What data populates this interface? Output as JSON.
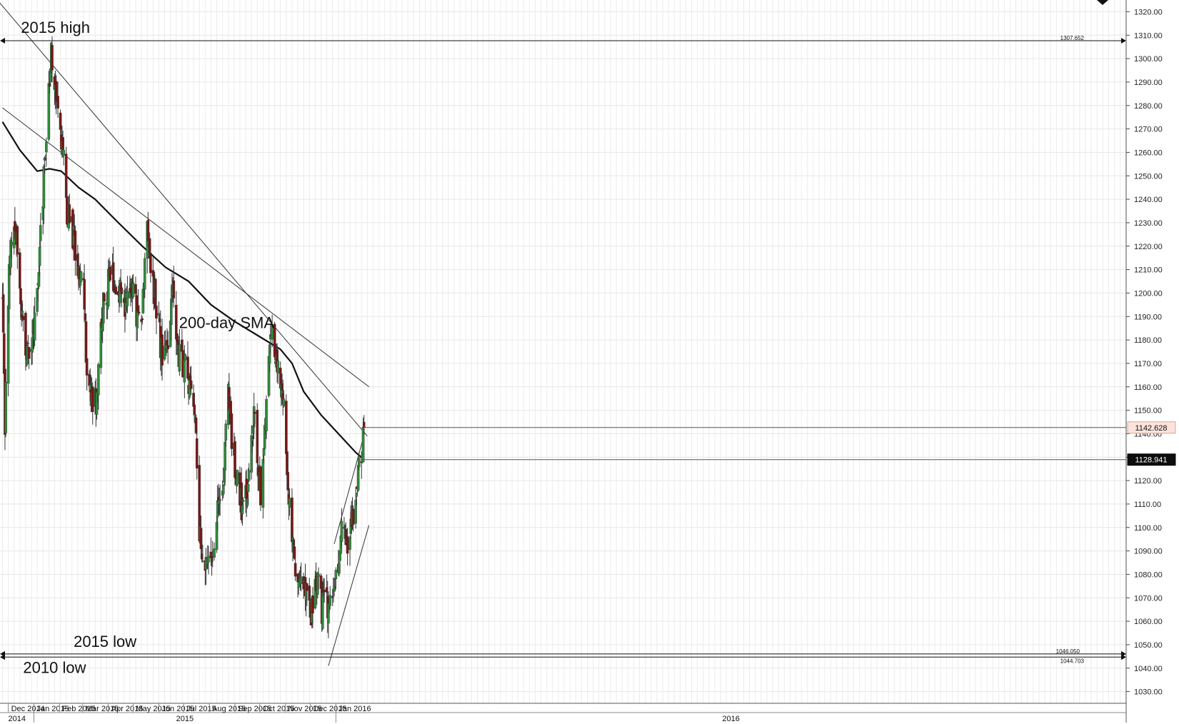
{
  "chart_data": {
    "type": "candlestick",
    "title": "",
    "xlabel": "",
    "ylabel": "",
    "ylim": [
      1025,
      1325
    ],
    "yticks": [
      1030,
      1040,
      1050,
      1060,
      1070,
      1080,
      1090,
      1100,
      1110,
      1120,
      1130,
      1140,
      1150,
      1160,
      1170,
      1180,
      1190,
      1200,
      1210,
      1220,
      1230,
      1240,
      1250,
      1260,
      1270,
      1280,
      1290,
      1300,
      1310,
      1320
    ],
    "ytick_suffix": ".00",
    "grid": true,
    "months": [
      "Dec 2014",
      "Jan 2015",
      "Feb 2015",
      "Mar 2015",
      "Apr 2015",
      "May 2015",
      "Jun 2015",
      "Jul 2015",
      "Aug 2015",
      "Sep 2015",
      "Oct 2015",
      "Nov 2015",
      "Dec 2015",
      "Jan 2016"
    ],
    "years": [
      "2014",
      "2015",
      "2016"
    ],
    "waypoints": [
      [
        "2014-11-24",
        1195
      ],
      [
        "2014-11-27",
        1145
      ],
      [
        "2014-12-03",
        1218
      ],
      [
        "2014-12-09",
        1232
      ],
      [
        "2014-12-16",
        1192
      ],
      [
        "2014-12-24",
        1175
      ],
      [
        "2015-01-02",
        1185
      ],
      [
        "2015-01-08",
        1218
      ],
      [
        "2015-01-15",
        1262
      ],
      [
        "2015-01-22",
        1300
      ],
      [
        "2015-01-28",
        1284
      ],
      [
        "2015-02-03",
        1268
      ],
      [
        "2015-02-10",
        1236
      ],
      [
        "2015-02-17",
        1225
      ],
      [
        "2015-02-24",
        1210
      ],
      [
        "2015-03-02",
        1205
      ],
      [
        "2015-03-06",
        1168
      ],
      [
        "2015-03-11",
        1155
      ],
      [
        "2015-03-17",
        1152
      ],
      [
        "2015-03-24",
        1192
      ],
      [
        "2015-04-02",
        1205
      ],
      [
        "2015-04-08",
        1208
      ],
      [
        "2015-04-14",
        1200
      ],
      [
        "2015-04-22",
        1195
      ],
      [
        "2015-04-29",
        1208
      ],
      [
        "2015-05-06",
        1190
      ],
      [
        "2015-05-12",
        1192
      ],
      [
        "2015-05-18",
        1225
      ],
      [
        "2015-05-22",
        1210
      ],
      [
        "2015-05-29",
        1195
      ],
      [
        "2015-06-05",
        1172
      ],
      [
        "2015-06-12",
        1180
      ],
      [
        "2015-06-18",
        1200
      ],
      [
        "2015-06-26",
        1172
      ],
      [
        "2015-07-02",
        1168
      ],
      [
        "2015-07-09",
        1160
      ],
      [
        "2015-07-15",
        1150
      ],
      [
        "2015-07-20",
        1100
      ],
      [
        "2015-07-24",
        1088
      ],
      [
        "2015-08-04",
        1090
      ],
      [
        "2015-08-10",
        1105
      ],
      [
        "2015-08-17",
        1118
      ],
      [
        "2015-08-24",
        1160
      ],
      [
        "2015-08-28",
        1135
      ],
      [
        "2015-09-04",
        1122
      ],
      [
        "2015-09-11",
        1105
      ],
      [
        "2015-09-17",
        1120
      ],
      [
        "2015-09-24",
        1150
      ],
      [
        "2015-10-02",
        1112
      ],
      [
        "2015-10-09",
        1155
      ],
      [
        "2015-10-15",
        1185
      ],
      [
        "2015-10-23",
        1165
      ],
      [
        "2015-10-29",
        1160
      ],
      [
        "2015-11-04",
        1115
      ],
      [
        "2015-11-10",
        1090
      ],
      [
        "2015-11-18",
        1075
      ],
      [
        "2015-11-26",
        1075
      ],
      [
        "2015-12-02",
        1060
      ],
      [
        "2015-12-08",
        1080
      ],
      [
        "2015-12-15",
        1065
      ],
      [
        "2015-12-21",
        1068
      ],
      [
        "2015-12-29",
        1068
      ],
      [
        "2016-01-05",
        1090
      ],
      [
        "2016-01-08",
        1102
      ],
      [
        "2016-01-14",
        1090
      ],
      [
        "2016-01-20",
        1100
      ],
      [
        "2016-01-26",
        1118
      ],
      [
        "2016-02-01",
        1128
      ],
      [
        "2016-02-04",
        1142
      ]
    ],
    "sma_label": "200-day SMA",
    "sma": [
      [
        "2014-11-24",
        1273
      ],
      [
        "2014-12-15",
        1261
      ],
      [
        "2015-01-05",
        1252
      ],
      [
        "2015-01-20",
        1253
      ],
      [
        "2015-02-03",
        1252
      ],
      [
        "2015-02-24",
        1245
      ],
      [
        "2015-03-16",
        1240
      ],
      [
        "2015-04-13",
        1230
      ],
      [
        "2015-05-12",
        1220
      ],
      [
        "2015-06-09",
        1211
      ],
      [
        "2015-07-07",
        1205
      ],
      [
        "2015-08-03",
        1195
      ],
      [
        "2015-08-31",
        1188
      ],
      [
        "2015-09-28",
        1182
      ],
      [
        "2015-10-26",
        1176
      ],
      [
        "2015-11-09",
        1170
      ],
      [
        "2015-11-23",
        1158
      ],
      [
        "2015-12-14",
        1148
      ],
      [
        "2016-01-04",
        1140
      ],
      [
        "2016-01-25",
        1132
      ],
      [
        "2016-02-04",
        1129
      ]
    ],
    "trendlines": [
      [
        [
          "2014-11-13",
          1327
        ],
        [
          "2016-02-08",
          1139
        ]
      ],
      [
        [
          "2014-11-24",
          1279
        ],
        [
          "2016-02-10",
          1160
        ]
      ],
      [
        [
          "2015-12-30",
          1093
        ],
        [
          "2016-02-03",
          1138
        ]
      ],
      [
        [
          "2015-12-23",
          1041
        ],
        [
          "2016-02-10",
          1101
        ]
      ]
    ],
    "levels": [
      {
        "name": "2015 high",
        "value": 1307.652,
        "label": "1307.652"
      },
      {
        "name": "2015 low",
        "value": 1046.05,
        "label": "1046.050"
      },
      {
        "name": "2010 low",
        "value": 1044.703,
        "label": "1044.703"
      }
    ],
    "annotations": [
      {
        "text": "2015 high",
        "date": "2015-01-27",
        "value": 1311
      },
      {
        "text": "200-day SMA",
        "date": "2015-08-22",
        "value": 1185
      },
      {
        "text": "2015 low",
        "date": "2015-03-28",
        "value": 1049
      },
      {
        "text": "2010 low",
        "date": "2015-01-26",
        "value": 1038
      }
    ],
    "price_tags": [
      {
        "label": "1142.628",
        "value": 1142.628
      },
      {
        "label": "1128.941",
        "value": 1128.941
      }
    ]
  }
}
